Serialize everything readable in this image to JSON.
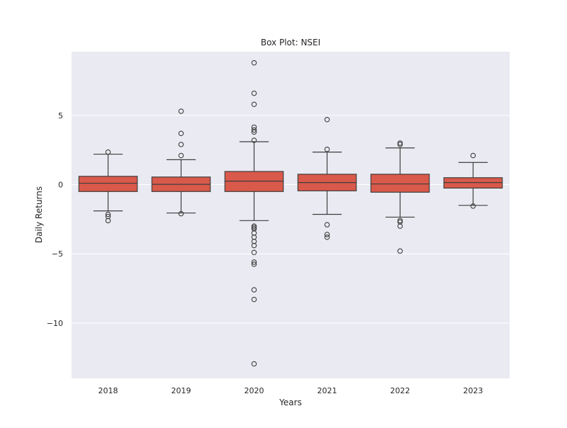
{
  "chart_data": {
    "type": "box",
    "title": "Box Plot: NSEI",
    "xlabel": "Years",
    "ylabel": "Daily Returns",
    "ylim": [
      -14,
      9.6
    ],
    "yticks": [
      -10,
      -5,
      0,
      5
    ],
    "ytick_labels": [
      "−10",
      "−5",
      "0",
      "5"
    ],
    "grid": true,
    "colors": {
      "box_fill": "#d9594a",
      "line": "#3f3f3f",
      "plot_bg": "#eaeaf2",
      "grid": "#ffffff"
    },
    "categories": [
      "2018",
      "2019",
      "2020",
      "2021",
      "2022",
      "2023"
    ],
    "boxes": [
      {
        "label": "2018",
        "whislo": -1.9,
        "q1": -0.5,
        "med": 0.1,
        "q3": 0.6,
        "whishi": 2.2,
        "fliers": [
          2.35,
          -2.15,
          -2.3,
          -2.6
        ]
      },
      {
        "label": "2019",
        "whislo": -2.05,
        "q1": -0.5,
        "med": 0.02,
        "q3": 0.55,
        "whishi": 1.8,
        "fliers": [
          5.3,
          3.7,
          2.9,
          2.1,
          -2.1
        ]
      },
      {
        "label": "2020",
        "whislo": -2.6,
        "q1": -0.5,
        "med": 0.25,
        "q3": 0.95,
        "whishi": 3.1,
        "fliers": [
          8.8,
          6.6,
          5.8,
          4.15,
          3.95,
          3.8,
          3.2,
          -3.0,
          -3.1,
          -3.2,
          -3.5,
          -3.8,
          -4.1,
          -4.4,
          -4.9,
          -5.6,
          -5.75,
          -7.6,
          -8.3,
          -12.95
        ]
      },
      {
        "label": "2021",
        "whislo": -2.15,
        "q1": -0.45,
        "med": 0.15,
        "q3": 0.75,
        "whishi": 2.35,
        "fliers": [
          4.7,
          2.55,
          -2.9,
          -3.6,
          -3.8
        ]
      },
      {
        "label": "2022",
        "whislo": -2.35,
        "q1": -0.55,
        "med": 0.05,
        "q3": 0.75,
        "whishi": 2.65,
        "fliers": [
          3.0,
          2.9,
          -2.6,
          -2.7,
          -3.0,
          -4.8
        ]
      },
      {
        "label": "2023",
        "whislo": -1.5,
        "q1": -0.25,
        "med": 0.15,
        "q3": 0.5,
        "whishi": 1.6,
        "fliers": [
          2.1,
          -1.55
        ]
      }
    ]
  }
}
